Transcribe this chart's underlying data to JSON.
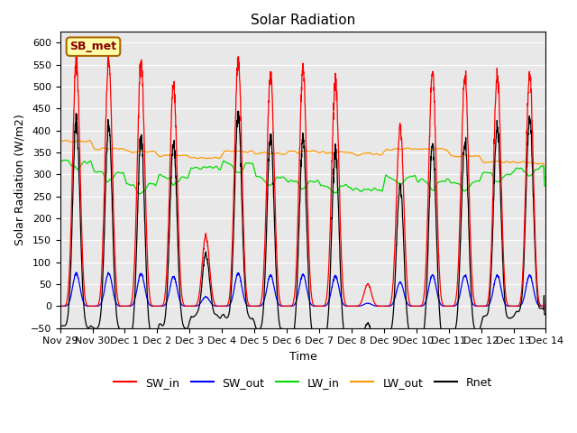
{
  "title": "Solar Radiation",
  "xlabel": "Time",
  "ylabel": "Solar Radiation (W/m2)",
  "ylim": [
    -50,
    625
  ],
  "bg_color": "#e8e8e8",
  "fig_color": "#ffffff",
  "label_box": "SB_met",
  "series_colors": {
    "SW_in": "#ff0000",
    "SW_out": "#0000ff",
    "LW_in": "#00dd00",
    "LW_out": "#ff9900",
    "Rnet": "#000000"
  },
  "xtick_labels": [
    "Nov 29",
    "Nov 30",
    "Dec 1",
    "Dec 2",
    "Dec 3",
    "Dec 4",
    "Dec 5",
    "Dec 6",
    "Dec 7",
    "Dec 8",
    "Dec 9",
    "Dec 10",
    "Dec 11",
    "Dec 12",
    "Dec 13",
    "Dec 14"
  ],
  "day_peaks_sw": [
    560,
    565,
    555,
    505,
    160,
    560,
    530,
    540,
    510,
    50,
    410,
    535,
    530,
    530,
    530
  ],
  "day_lw_in_base": [
    330,
    305,
    275,
    295,
    315,
    325,
    295,
    285,
    275,
    265,
    295,
    285,
    285,
    305,
    315
  ],
  "day_lw_out_base": [
    375,
    358,
    352,
    342,
    338,
    352,
    348,
    352,
    352,
    348,
    358,
    358,
    342,
    328,
    328
  ]
}
